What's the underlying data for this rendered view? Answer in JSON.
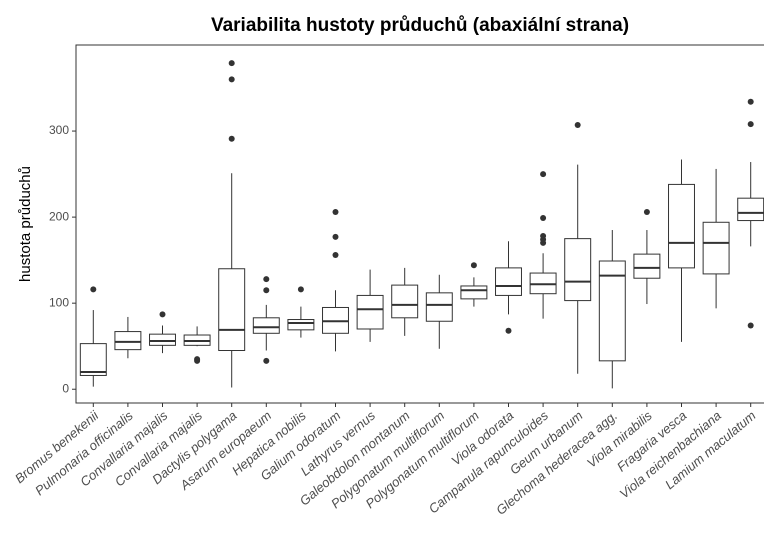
{
  "chart_data": {
    "type": "box",
    "title": "Variabilita hustoty průduchů (abaxiální strana)",
    "y_label": "hustota průduchů",
    "categories": [
      "Bromus benekenii",
      "Pulmonaria officinalis",
      "Convallaria majalis",
      "Convallaria majalis",
      "Dactylis polygama",
      "Asarum europaeum",
      "Hepatica nobilis",
      "Galium odoratum",
      "Lathyrus vernus",
      "Galeobdolon montanum",
      "Polygonatum multiflorum",
      "Polygonatum multiflorum",
      "Viola odorata",
      "Campanula rapunculoides",
      "Geum urbanum",
      "Glechoma hederacea agg.",
      "Viola mirabilis",
      "Fragaria vesca",
      "Viola reichenbachiana",
      "Lamium maculatum"
    ],
    "boxes": [
      {
        "whislo": 3,
        "q1": 16,
        "med": 20,
        "q3": 53,
        "whishi": 92,
        "fliers": [
          116
        ]
      },
      {
        "whislo": 36,
        "q1": 46,
        "med": 55,
        "q3": 67,
        "whishi": 84,
        "fliers": []
      },
      {
        "whislo": 42,
        "q1": 51,
        "med": 56,
        "q3": 64,
        "whishi": 74,
        "fliers": [
          87
        ]
      },
      {
        "whislo": 50,
        "q1": 51,
        "med": 56,
        "q3": 63,
        "whishi": 73,
        "fliers": [
          33,
          35
        ]
      },
      {
        "whislo": 2,
        "q1": 45,
        "med": 69,
        "q3": 140,
        "whishi": 251,
        "fliers": [
          291,
          360,
          379
        ]
      },
      {
        "whislo": 45,
        "q1": 65,
        "med": 72,
        "q3": 83,
        "whishi": 98,
        "fliers": [
          33,
          115,
          128
        ]
      },
      {
        "whislo": 60,
        "q1": 69,
        "med": 77,
        "q3": 81,
        "whishi": 96,
        "fliers": [
          116
        ]
      },
      {
        "whislo": 44,
        "q1": 65,
        "med": 79,
        "q3": 95,
        "whishi": 115,
        "fliers": [
          156,
          177,
          206
        ]
      },
      {
        "whislo": 55,
        "q1": 70,
        "med": 93,
        "q3": 109,
        "whishi": 139,
        "fliers": []
      },
      {
        "whislo": 62,
        "q1": 83,
        "med": 98,
        "q3": 121,
        "whishi": 141,
        "fliers": []
      },
      {
        "whislo": 47,
        "q1": 79,
        "med": 98,
        "q3": 112,
        "whishi": 133,
        "fliers": []
      },
      {
        "whislo": 96,
        "q1": 105,
        "med": 115,
        "q3": 120,
        "whishi": 130,
        "fliers": [
          144
        ]
      },
      {
        "whislo": 87,
        "q1": 109,
        "med": 120,
        "q3": 141,
        "whishi": 172,
        "fliers": [
          68
        ]
      },
      {
        "whislo": 82,
        "q1": 111,
        "med": 122,
        "q3": 135,
        "whishi": 158,
        "fliers": [
          170,
          174,
          178,
          199,
          250
        ]
      },
      {
        "whislo": 18,
        "q1": 103,
        "med": 125,
        "q3": 175,
        "whishi": 261,
        "fliers": [
          307
        ]
      },
      {
        "whislo": 1,
        "q1": 33,
        "med": 132,
        "q3": 149,
        "whishi": 185,
        "fliers": []
      },
      {
        "whislo": 99,
        "q1": 129,
        "med": 141,
        "q3": 157,
        "whishi": 185,
        "fliers": [
          206
        ]
      },
      {
        "whislo": 55,
        "q1": 141,
        "med": 170,
        "q3": 238,
        "whishi": 267,
        "fliers": []
      },
      {
        "whislo": 94,
        "q1": 134,
        "med": 170,
        "q3": 194,
        "whishi": 256,
        "fliers": []
      },
      {
        "whislo": 166,
        "q1": 196,
        "med": 205,
        "q3": 222,
        "whishi": 264,
        "fliers": [
          74,
          308,
          334
        ]
      }
    ],
    "color": "#333333",
    "ylim": [
      -16,
      400
    ],
    "yticks": [
      0,
      100,
      200,
      300
    ]
  }
}
